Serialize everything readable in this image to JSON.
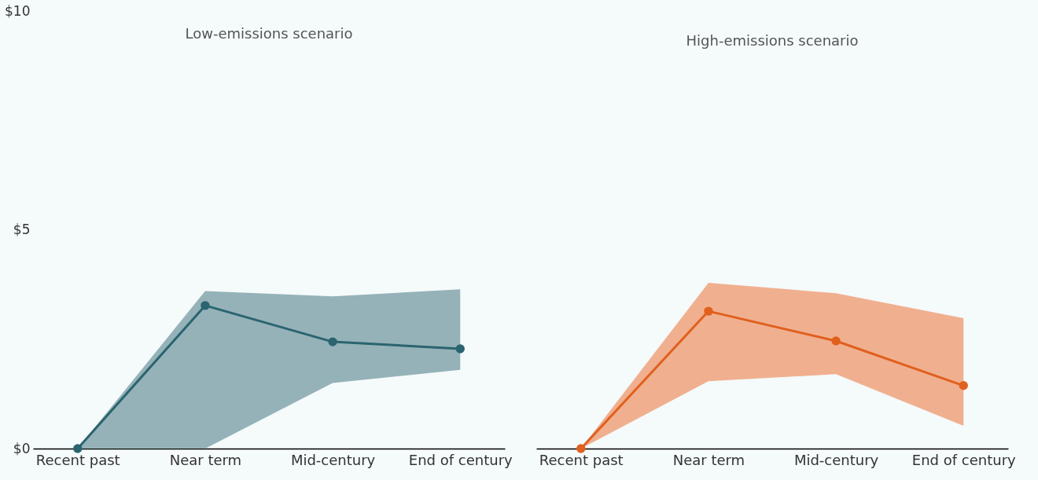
{
  "chart_data": [
    {
      "type": "line",
      "title": "Low-emissions scenario",
      "categories": [
        "Recent past",
        "Near term",
        "Mid-century",
        "End of century"
      ],
      "series": [
        {
          "color": "#2a6470",
          "values": [
            0,
            3.27,
            2.44,
            2.28
          ],
          "lower": [
            0,
            0,
            1.5,
            1.8
          ],
          "upper": [
            0,
            3.6,
            3.48,
            3.64
          ]
        }
      ],
      "ylim": [
        0,
        10
      ],
      "yticks": [
        {
          "value": 0,
          "label": "$0"
        },
        {
          "value": 5,
          "label": "$5"
        },
        {
          "value": 10,
          "label": "$10"
        }
      ],
      "grid": false,
      "marker": "circle",
      "line_style": "solid"
    },
    {
      "type": "line",
      "title": "High-emissions scenario",
      "categories": [
        "Recent past",
        "Near term",
        "Mid-century",
        "End of century"
      ],
      "series": [
        {
          "color": "#e0601e",
          "values": [
            0,
            3.14,
            2.46,
            1.44
          ],
          "lower": [
            0,
            1.54,
            1.7,
            0.52
          ],
          "upper": [
            0,
            3.79,
            3.55,
            2.98
          ]
        }
      ],
      "ylim": [
        0,
        10
      ],
      "tick_labels": "x",
      "grid": false,
      "marker": "circle",
      "line_style": "solid"
    }
  ]
}
